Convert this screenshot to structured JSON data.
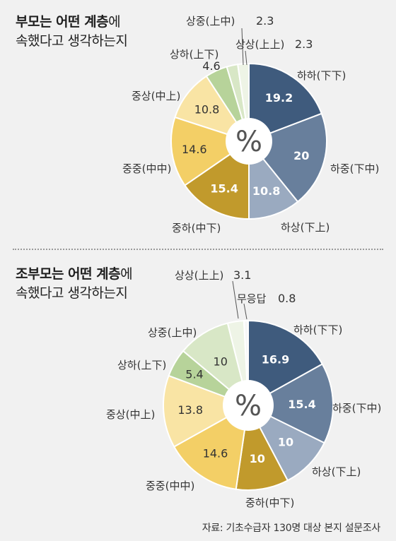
{
  "charts": [
    {
      "title_bold": "부모는 어떤 계층",
      "title_rest": "에",
      "title_line2": "속했다고 생각하는지",
      "center_label": "%",
      "categories": [
        "하하(下下)",
        "하중(下中)",
        "하상(下上)",
        "중하(中下)",
        "중중(中中)",
        "중상(中上)",
        "상하(上下)",
        "상중(上中)",
        "상상(上上)"
      ],
      "values": [
        19.2,
        20,
        10.8,
        15.4,
        14.6,
        10.8,
        4.6,
        2.3,
        2.3
      ],
      "value_labels": [
        "19.2",
        "20",
        "10.8",
        "15.4",
        "14.6",
        "10.8",
        "4.6",
        "2.3",
        "2.3"
      ],
      "colors": [
        "#3f5b7d",
        "#687f9c",
        "#9aaac0",
        "#c19a2c",
        "#f3cf66",
        "#f9e4a4",
        "#b7d39a",
        "#d8e7c6",
        "#eef4e6"
      ]
    },
    {
      "title_bold": "조부모는 어떤 계층",
      "title_rest": "에",
      "title_line2": "속했다고 생각하는지",
      "center_label": "%",
      "categories": [
        "하하(下下)",
        "하중(下中)",
        "하상(下上)",
        "중하(中下)",
        "중중(中中)",
        "중상(中上)",
        "상하(上下)",
        "상중(上中)",
        "상상(上上)",
        "무응답"
      ],
      "values": [
        16.9,
        15.4,
        10,
        10,
        14.6,
        13.8,
        5.4,
        10,
        3.1,
        0.8
      ],
      "value_labels": [
        "16.9",
        "15.4",
        "10",
        "10",
        "14.6",
        "13.8",
        "5.4",
        "10",
        "3.1",
        "0.8"
      ],
      "colors": [
        "#3f5b7d",
        "#687f9c",
        "#9aaac0",
        "#c19a2c",
        "#f3cf66",
        "#f9e4a4",
        "#b7d39a",
        "#d8e7c6",
        "#eef4e6",
        "#f7f7f7"
      ]
    }
  ],
  "chart_data": [
    {
      "type": "pie",
      "title": "부모는 어떤 계층에 속했다고 생각하는지",
      "unit": "%",
      "categories": [
        "하하(下下)",
        "하중(下中)",
        "하상(下上)",
        "중하(中下)",
        "중중(中中)",
        "중상(中上)",
        "상하(上下)",
        "상중(上中)",
        "상상(上上)"
      ],
      "values": [
        19.2,
        20,
        10.8,
        15.4,
        14.6,
        10.8,
        4.6,
        2.3,
        2.3
      ]
    },
    {
      "type": "pie",
      "title": "조부모는 어떤 계층에 속했다고 생각하는지",
      "unit": "%",
      "categories": [
        "하하(下下)",
        "하중(下中)",
        "하상(下上)",
        "중하(中下)",
        "중중(中中)",
        "중상(中上)",
        "상하(上下)",
        "상중(上中)",
        "상상(上上)",
        "무응답"
      ],
      "values": [
        16.9,
        15.4,
        10,
        10,
        14.6,
        13.8,
        5.4,
        10,
        3.1,
        0.8
      ]
    }
  ],
  "source": "자료: 기초수급자 130명 대상 본지 설문조사"
}
